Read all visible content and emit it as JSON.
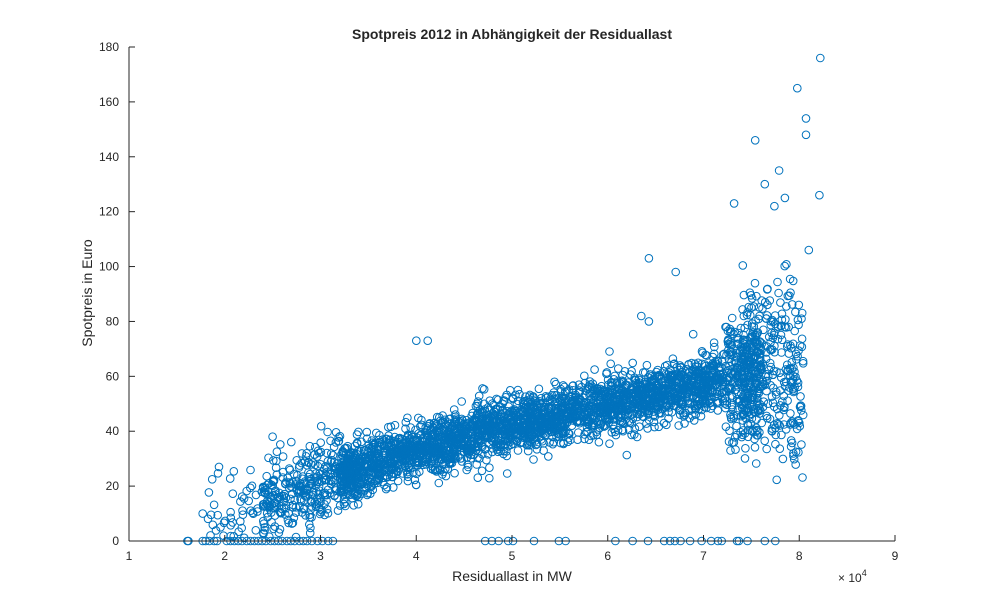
{
  "chart_data": {
    "type": "scatter",
    "title": "Spotpreis 2012 in Abhängigkeit der Residuallast",
    "xlabel": "Residuallast in MW",
    "ylabel": "Spotpreis in Euro",
    "xlim": [
      10000,
      90000
    ],
    "ylim": [
      0,
      180
    ],
    "x_ticks": [
      "1",
      "2",
      "3",
      "4",
      "5",
      "6",
      "7",
      "8",
      "9"
    ],
    "x_tick_values": [
      10000,
      20000,
      30000,
      40000,
      50000,
      60000,
      70000,
      80000,
      90000
    ],
    "y_ticks": [
      "0",
      "20",
      "40",
      "60",
      "80",
      "100",
      "120",
      "140",
      "160",
      "180"
    ],
    "y_tick_values": [
      0,
      20,
      40,
      60,
      80,
      100,
      120,
      140,
      160,
      180
    ],
    "x_exponent_base": "× 10",
    "x_exponent_power": "4",
    "marker": "circle",
    "color": "#0072BD",
    "grid": false,
    "series": [
      {
        "name": "Spotpreis",
        "trend": {
          "x": [
            16000,
            30000,
            40000,
            50000,
            60000,
            70000,
            78000
          ],
          "y": [
            5,
            22,
            33,
            42,
            50,
            57,
            62
          ]
        },
        "notable_points": [
          {
            "x": 82200,
            "y": 176
          },
          {
            "x": 79800,
            "y": 165
          },
          {
            "x": 80700,
            "y": 154
          },
          {
            "x": 80700,
            "y": 148
          },
          {
            "x": 75400,
            "y": 146
          },
          {
            "x": 77900,
            "y": 135
          },
          {
            "x": 76400,
            "y": 130
          },
          {
            "x": 82100,
            "y": 126
          },
          {
            "x": 78500,
            "y": 125
          },
          {
            "x": 73200,
            "y": 123
          },
          {
            "x": 77400,
            "y": 122
          },
          {
            "x": 81000,
            "y": 106
          },
          {
            "x": 64300,
            "y": 103
          },
          {
            "x": 67100,
            "y": 98
          },
          {
            "x": 40000,
            "y": 73
          },
          {
            "x": 41200,
            "y": 73
          },
          {
            "x": 25000,
            "y": 38
          },
          {
            "x": 19400,
            "y": 27
          },
          {
            "x": 17700,
            "y": 10
          },
          {
            "x": 64300,
            "y": 80
          },
          {
            "x": 63500,
            "y": 82
          }
        ],
        "zero_price_x": [
          16100,
          16200,
          17700,
          18000,
          18400,
          18900,
          19200,
          20200,
          20600,
          21000,
          21400,
          21800,
          22300,
          22700,
          23100,
          23500,
          23900,
          24300,
          24800,
          25200,
          25600,
          26000,
          26500,
          26900,
          27300,
          27800,
          28200,
          28600,
          29100,
          29700,
          30200,
          30800,
          31300,
          47200,
          47900,
          48600,
          49600,
          50100,
          52300,
          54900,
          55600,
          60800,
          62600,
          64200,
          65900,
          66500,
          67000,
          67600,
          68600,
          69800,
          70800,
          71500,
          71900,
          73500,
          73700,
          74600,
          76400,
          77500
        ]
      }
    ]
  }
}
